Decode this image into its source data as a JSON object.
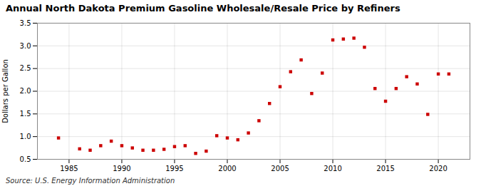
{
  "chart_data": {
    "type": "scatter",
    "title": "Annual North Dakota Premium Gasoline Wholesale/Resale Price by Refiners",
    "ylabel": "Dollars per Gallon",
    "source": "Source: U.S. Energy Information Administration",
    "x": [
      1984,
      1986,
      1987,
      1988,
      1989,
      1990,
      1991,
      1992,
      1993,
      1994,
      1995,
      1996,
      1997,
      1998,
      1999,
      2000,
      2001,
      2002,
      2003,
      2004,
      2005,
      2006,
      2007,
      2008,
      2009,
      2010,
      2011,
      2012,
      2013,
      2014,
      2015,
      2016,
      2017,
      2018,
      2019,
      2020,
      2021
    ],
    "values": [
      0.97,
      0.73,
      0.7,
      0.8,
      0.9,
      0.8,
      0.75,
      0.7,
      0.7,
      0.72,
      0.78,
      0.8,
      0.63,
      0.68,
      1.02,
      0.97,
      0.93,
      1.08,
      1.35,
      1.73,
      2.1,
      2.43,
      2.69,
      1.95,
      2.4,
      3.13,
      3.15,
      3.17,
      2.97,
      2.06,
      1.78,
      2.06,
      2.32,
      2.16,
      1.49,
      2.38,
      2.38
    ],
    "color": "#cc0000",
    "marker": "square",
    "xlim": [
      1982,
      2023
    ],
    "ylim": [
      0.5,
      3.5
    ],
    "xticks": [
      1985,
      1990,
      1995,
      2000,
      2005,
      2010,
      2015,
      2020
    ],
    "yticks": [
      0.5,
      {
        "value": 1,
        "label": "1.0"
      },
      1.5,
      {
        "value": 2,
        "label": "2.0"
      },
      2.5,
      {
        "value": 3,
        "label": "3.0"
      },
      3.5
    ],
    "grid": true
  }
}
